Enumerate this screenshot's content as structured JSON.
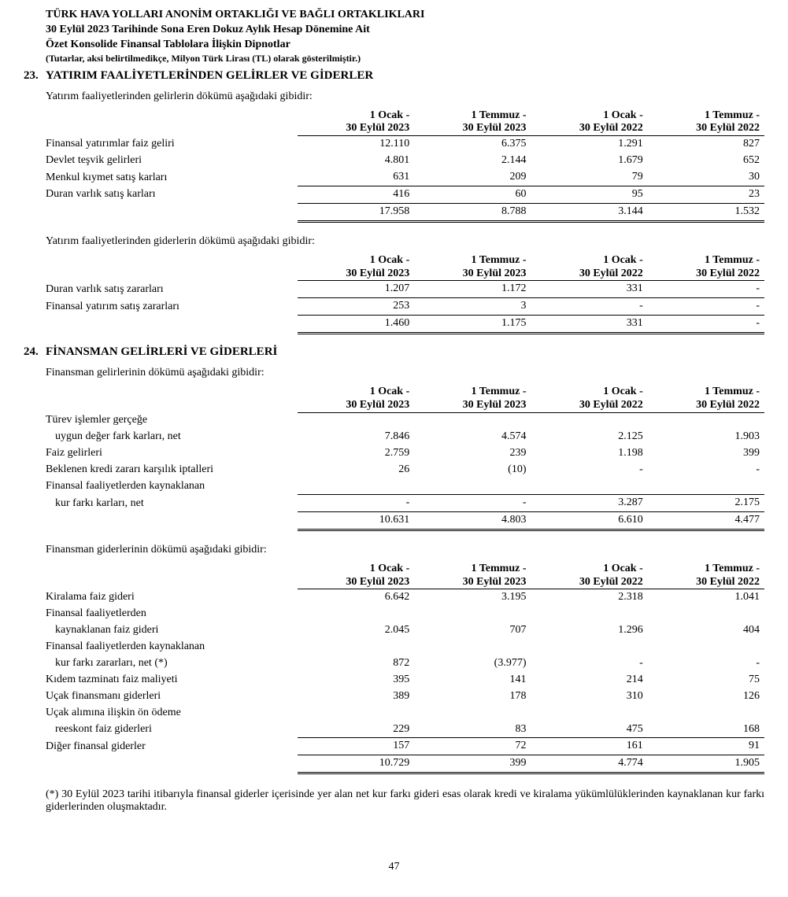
{
  "header": {
    "line1": "TÜRK HAVA YOLLARI ANONİM ORTAKLIĞI VE BAĞLI ORTAKLIKLARI",
    "line2": "30 Eylül 2023 Tarihinde Sona Eren Dokuz Aylık Hesap Dönemine Ait",
    "line3": "Özet Konsolide Finansal Tablolara İlişkin Dipnotlar",
    "line4": "(Tutarlar, aksi belirtilmedikçe, Milyon Türk Lirası (TL) olarak gösterilmiştir.)"
  },
  "columns": {
    "c1": {
      "l1": "1 Ocak -",
      "l2": "30 Eylül 2023"
    },
    "c2": {
      "l1": "1 Temmuz -",
      "l2": "30 Eylül 2023"
    },
    "c3": {
      "l1": "1 Ocak -",
      "l2": "30 Eylül 2022"
    },
    "c4": {
      "l1": "1 Temmuz -",
      "l2": "30 Eylül 2022"
    }
  },
  "note23": {
    "num": "23.",
    "title": "YATIRIM FAALİYETLERİNDEN GELİRLER VE GİDERLER",
    "intro_income": "Yatırım faaliyetlerinden gelirlerin dökümü aşağıdaki gibidir:",
    "income": {
      "rows": [
        {
          "label": "Finansal yatırımlar faiz geliri",
          "v": [
            "12.110",
            "6.375",
            "1.291",
            "827"
          ]
        },
        {
          "label": "Devlet teşvik gelirleri",
          "v": [
            "4.801",
            "2.144",
            "1.679",
            "652"
          ]
        },
        {
          "label": "Menkul kıymet satış karları",
          "v": [
            "631",
            "209",
            "79",
            "30"
          ]
        },
        {
          "label": "Duran varlık satış karları",
          "v": [
            "416",
            "60",
            "95",
            "23"
          ]
        }
      ],
      "total": [
        "17.958",
        "8.788",
        "3.144",
        "1.532"
      ]
    },
    "intro_expense": "Yatırım faaliyetlerinden giderlerin dökümü aşağıdaki gibidir:",
    "expense": {
      "rows": [
        {
          "label": "Duran varlık satış zararları",
          "v": [
            "1.207",
            "1.172",
            "331",
            "-"
          ]
        },
        {
          "label": "Finansal yatırım satış zararları",
          "v": [
            "253",
            "3",
            "-",
            "-"
          ]
        }
      ],
      "total": [
        "1.460",
        "1.175",
        "331",
        "-"
      ]
    }
  },
  "note24": {
    "num": "24.",
    "title": "FİNANSMAN GELİRLERİ VE GİDERLERİ",
    "intro_income": "Finansman gelirlerinin dökümü aşağıdaki gibidir:",
    "income": {
      "rows": [
        {
          "label": "Türev işlemler gerçeğe",
          "label2": "uygun değer fark karları, net",
          "v": [
            "7.846",
            "4.574",
            "2.125",
            "1.903"
          ]
        },
        {
          "label": "Faiz gelirleri",
          "v": [
            "2.759",
            "239",
            "1.198",
            "399"
          ]
        },
        {
          "label": "Beklenen kredi zararı karşılık iptalleri",
          "v": [
            "26",
            "(10)",
            "-",
            "-"
          ]
        },
        {
          "label": "Finansal faaliyetlerden kaynaklanan",
          "label2": "kur farkı karları, net",
          "v": [
            "-",
            "-",
            "3.287",
            "2.175"
          ]
        }
      ],
      "total": [
        "10.631",
        "4.803",
        "6.610",
        "4.477"
      ]
    },
    "intro_expense": "Finansman giderlerinin dökümü aşağıdaki gibidir:",
    "expense": {
      "rows": [
        {
          "label": "Kiralama faiz gideri",
          "v": [
            "6.642",
            "3.195",
            "2.318",
            "1.041"
          ]
        },
        {
          "label": "Finansal faaliyetlerden",
          "label2": "kaynaklanan faiz gideri",
          "v": [
            "2.045",
            "707",
            "1.296",
            "404"
          ]
        },
        {
          "label": "Finansal faaliyetlerden kaynaklanan",
          "label2": "kur farkı zararları, net (*)",
          "v": [
            "872",
            "(3.977)",
            "-",
            "-"
          ]
        },
        {
          "label": "Kıdem tazminatı faiz maliyeti",
          "v": [
            "395",
            "141",
            "214",
            "75"
          ]
        },
        {
          "label": "Uçak finansmanı giderleri",
          "v": [
            "389",
            "178",
            "310",
            "126"
          ]
        },
        {
          "label": "Uçak alımına ilişkin ön ödeme",
          "label2": "reeskont faiz giderleri",
          "v": [
            "229",
            "83",
            "475",
            "168"
          ]
        },
        {
          "label": "Diğer finansal giderler",
          "v": [
            "157",
            "72",
            "161",
            "91"
          ]
        }
      ],
      "total": [
        "10.729",
        "399",
        "4.774",
        "1.905"
      ]
    },
    "footnote": "(*) 30 Eylül 2023 tarihi itibarıyla finansal giderler içerisinde yer alan net kur farkı gideri esas olarak kredi ve kiralama yükümlülüklerinden kaynaklanan kur farkı giderlerinden oluşmaktadır."
  },
  "page_number": "47"
}
